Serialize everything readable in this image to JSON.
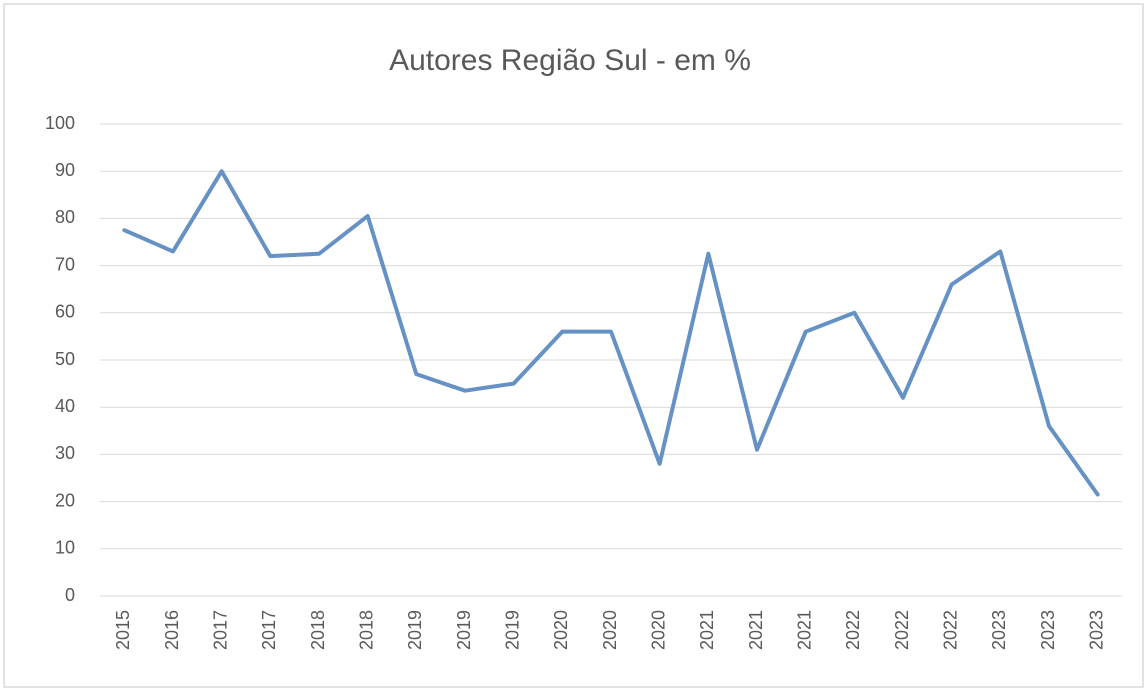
{
  "chart_data": {
    "type": "line",
    "title": "Autores Região Sul - em %",
    "categories": [
      "2015",
      "2016",
      "2017",
      "2017",
      "2018",
      "2018",
      "2019",
      "2019",
      "2019",
      "2020",
      "2020",
      "2020",
      "2021",
      "2021",
      "2021",
      "2022",
      "2022",
      "2022",
      "2023",
      "2023",
      "2023"
    ],
    "values": [
      77.5,
      73,
      90,
      72,
      72.5,
      80.5,
      47,
      43.5,
      45,
      56,
      56,
      28,
      72.5,
      31,
      56,
      60,
      42,
      66,
      73,
      36,
      21.5
    ],
    "color": "#6591c4",
    "ylim": [
      0,
      100
    ],
    "yticks": [
      0,
      10,
      20,
      30,
      40,
      50,
      60,
      70,
      80,
      90,
      100
    ],
    "grid": true
  }
}
